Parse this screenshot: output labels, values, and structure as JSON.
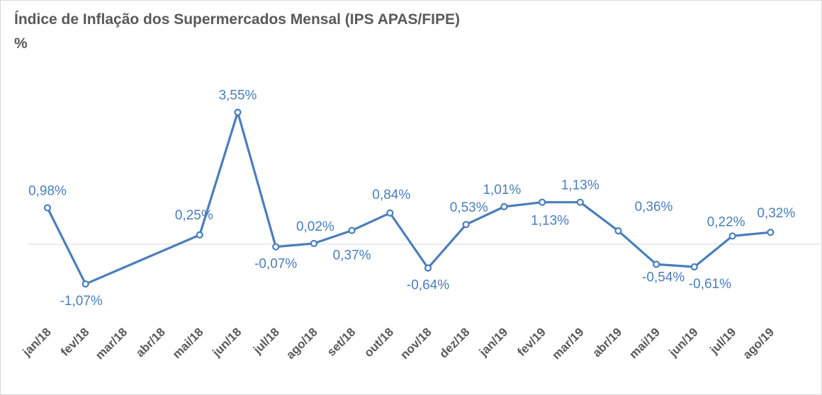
{
  "chart_data": {
    "type": "line",
    "title": "Índice de Inflação dos Supermercados Mensal (IPS APAS/FIPE)",
    "unit_label": "%",
    "categories": [
      "jan/18",
      "fev/18",
      "mar/18",
      "abr/18",
      "mai/18",
      "jun/18",
      "jul/18",
      "ago/18",
      "set/18",
      "out/18",
      "nov/18",
      "dez/18",
      "jan/19",
      "fev/19",
      "mar/19",
      "abr/19",
      "mai/19",
      "jun/19",
      "jul/19",
      "ago/19"
    ],
    "values": [
      0.98,
      -1.07,
      null,
      null,
      0.25,
      3.55,
      -0.07,
      0.02,
      0.37,
      0.84,
      -0.64,
      0.53,
      1.01,
      1.13,
      1.13,
      0.36,
      -0.54,
      -0.61,
      0.22,
      0.32
    ],
    "data_labels": [
      "0,98%",
      "-1,07%",
      "",
      "",
      "0,25%",
      "3,55%",
      "-0,07%",
      "0,02%",
      "0,37%",
      "0,84%",
      "-0,64%",
      "0,53%",
      "1,01%",
      "1,13%",
      "1,13%",
      "0,36%",
      "-0,54%",
      "-0,61%",
      "0,22%",
      "0,32%"
    ],
    "gaps": "connected",
    "ylim": [
      -2.2,
      4.8
    ],
    "grid": false,
    "legend": "none",
    "colors": {
      "line": "#4a7ebb",
      "axis": "#d9d9d9",
      "text": "#595959"
    }
  }
}
